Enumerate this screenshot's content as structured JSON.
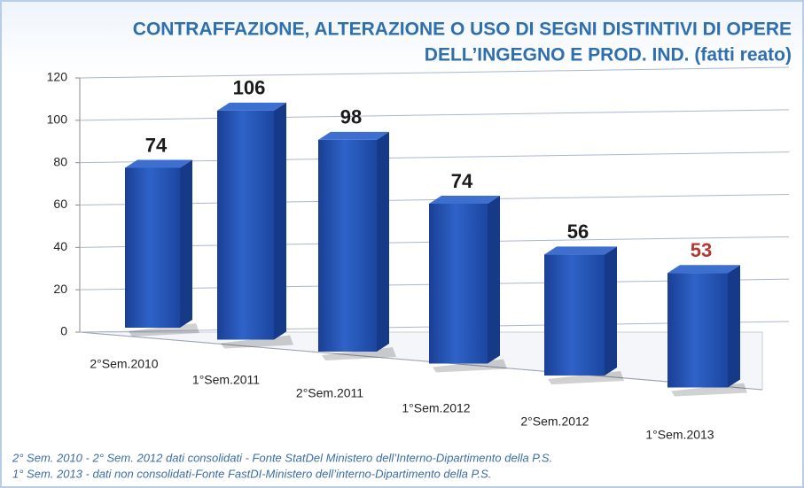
{
  "chart_data": {
    "type": "bar3d",
    "title_lines": [
      "CONTRAFFAZIONE, ALTERAZIONE O USO DI SEGNI DISTINTIVI DI OPERE",
      "DELL’INGEGNO E PROD. IND.  (fatti reato)"
    ],
    "categories": [
      "2°Sem.2010",
      "1°Sem.2011",
      "2°Sem.2011",
      "1°Sem.2012",
      "2°Sem.2012",
      "1°Sem.2013"
    ],
    "values": [
      74,
      106,
      98,
      74,
      56,
      53
    ],
    "color": "#1f4fb0",
    "value_label_colors": [
      "#1a1a1a",
      "#1a1a1a",
      "#1a1a1a",
      "#1a1a1a",
      "#1a1a1a",
      "#b23a32"
    ],
    "ylim": [
      0,
      120
    ],
    "yticks": [
      0,
      20,
      40,
      60,
      80,
      100,
      120
    ],
    "grid": true,
    "notes": [
      "2° Sem. 2010 - 2° Sem. 2012 dati consolidati - Fonte StatDel Ministero dell’Interno-Dipartimento della P.S.",
      "1° Sem. 2013 - dati non consolidati-Fonte FastDI-Ministero dell’interno-Dipartimento della P.S."
    ]
  }
}
